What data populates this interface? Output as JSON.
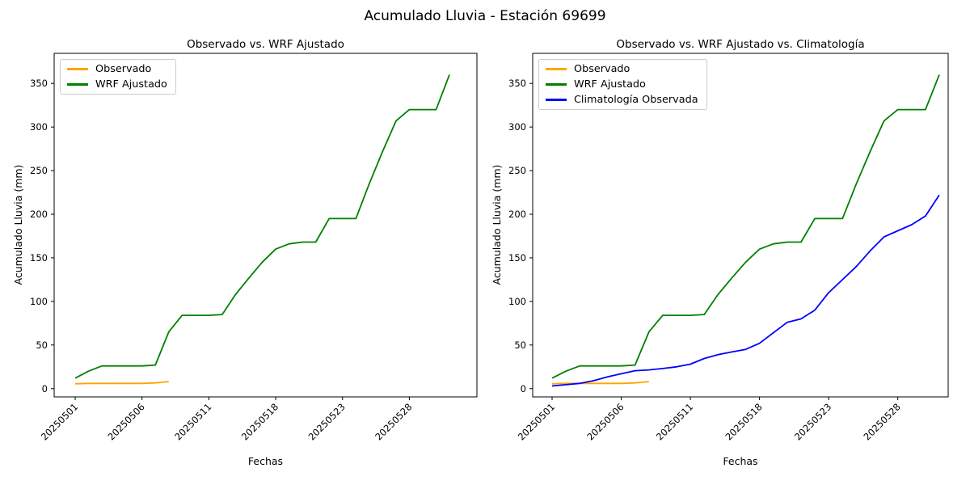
{
  "figure": {
    "suptitle": "Acumulado Lluvia - Estación 69699"
  },
  "chart_data": [
    {
      "type": "line",
      "title": "Observado vs. WRF Ajustado",
      "xlabel": "Fechas",
      "ylabel": "Acumulado Lluvia (mm)",
      "ylim": [
        -9.5,
        384.5
      ],
      "yticks": [
        0,
        50,
        100,
        150,
        200,
        250,
        300,
        350
      ],
      "grid": false,
      "legend_position": "upper-left",
      "x": [
        "20250501",
        "20250502",
        "20250503",
        "20250504",
        "20250505",
        "20250506",
        "20250507",
        "20250508",
        "20250509",
        "20250510",
        "20250511",
        "20250514",
        "20250515",
        "20250516",
        "20250517",
        "20250518",
        "20250519",
        "20250520",
        "20250521",
        "20250522",
        "20250523",
        "20250524",
        "20250525",
        "20250526",
        "20250527",
        "20250528",
        "20250529",
        "20250530",
        "20250531"
      ],
      "xtick_indices": [
        0,
        5,
        10,
        15,
        20,
        25
      ],
      "xtick_labels": [
        "20250501",
        "20250506",
        "20250511",
        "20250518",
        "20250523",
        "20250528"
      ],
      "series": [
        {
          "name": "Observado",
          "color": "#FFA500",
          "values": [
            5.5,
            6,
            6,
            6,
            6,
            6,
            6.5,
            8
          ]
        },
        {
          "name": "WRF Ajustado",
          "color": "#008000",
          "values": [
            12,
            20,
            26,
            26,
            26,
            26,
            27,
            65,
            84,
            84,
            84,
            85,
            108,
            127,
            145,
            160,
            166,
            168,
            168,
            195,
            195,
            195,
            235,
            272,
            307,
            320,
            320,
            320,
            360
          ]
        }
      ]
    },
    {
      "type": "line",
      "title": "Observado vs. WRF Ajustado vs. Climatología",
      "xlabel": "Fechas",
      "ylabel": "Acumulado Lluvia (mm)",
      "ylim": [
        -9.5,
        384.5
      ],
      "yticks": [
        0,
        50,
        100,
        150,
        200,
        250,
        300,
        350
      ],
      "grid": false,
      "legend_position": "upper-left",
      "x": [
        "20250501",
        "20250502",
        "20250503",
        "20250504",
        "20250505",
        "20250506",
        "20250507",
        "20250508",
        "20250509",
        "20250510",
        "20250511",
        "20250514",
        "20250515",
        "20250516",
        "20250517",
        "20250518",
        "20250519",
        "20250520",
        "20250521",
        "20250522",
        "20250523",
        "20250524",
        "20250525",
        "20250526",
        "20250527",
        "20250528",
        "20250529",
        "20250530",
        "20250531"
      ],
      "xtick_indices": [
        0,
        5,
        10,
        15,
        20,
        25
      ],
      "xtick_labels": [
        "20250501",
        "20250506",
        "20250511",
        "20250518",
        "20250523",
        "20250528"
      ],
      "series": [
        {
          "name": "Observado",
          "color": "#FFA500",
          "values": [
            5.5,
            6,
            6,
            6,
            6,
            6,
            6.5,
            8
          ]
        },
        {
          "name": "WRF Ajustado",
          "color": "#008000",
          "values": [
            12,
            20,
            26,
            26,
            26,
            26,
            27,
            65,
            84,
            84,
            84,
            85,
            108,
            127,
            145,
            160,
            166,
            168,
            168,
            195,
            195,
            195,
            235,
            272,
            307,
            320,
            320,
            320,
            360
          ]
        },
        {
          "name": "Climatología Observada",
          "color": "#0000FF",
          "values": [
            3,
            4.5,
            6,
            9,
            13.5,
            17,
            20.5,
            21.5,
            23,
            25,
            28,
            34.5,
            39,
            42,
            45,
            52,
            64,
            76,
            80,
            90,
            110,
            125,
            140,
            158,
            174,
            181,
            188,
            198,
            222
          ]
        }
      ]
    }
  ]
}
